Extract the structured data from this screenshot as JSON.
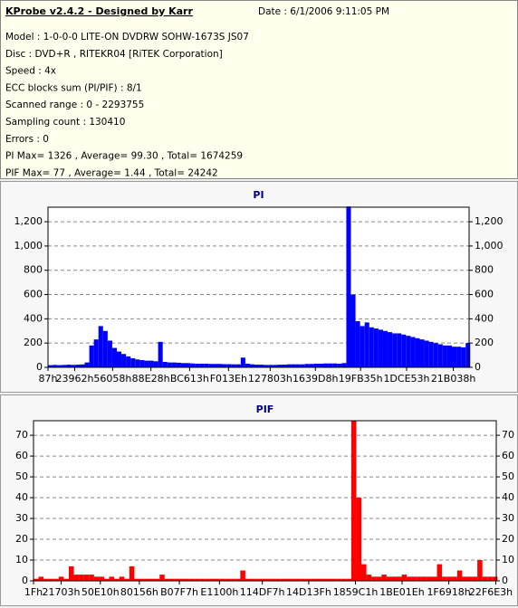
{
  "header": {
    "title": "KProbe v2.4.2 - Designed by Karr",
    "date": "Date : 6/1/2006 9:11:05 PM",
    "lines": [
      "Model : 1-0-0-0 LITE-ON DVDRW SOHW-1673S JS07",
      "Disc : DVD+R , RITEKR04 [RiTEK Corporation]",
      "Speed : 4x",
      "ECC blocks sum (PI/PIF) : 8/1",
      "Scanned range : 0 - 2293755",
      "Sampling count : 130410",
      "Errors : 0",
      "PI Max= 1326 , Average= 99.30 , Total= 1674259",
      "PIF Max= 77 , Average= 1.44 , Total= 24242"
    ]
  },
  "chart_data": [
    {
      "type": "bar",
      "title": "PI",
      "color": "#0000ff",
      "grid": true,
      "xlim": [
        135,
        2293755
      ],
      "ylim": [
        0,
        1320
      ],
      "xticks": [
        {
          "value": 135,
          "label": "87h"
        },
        {
          "value": 145762,
          "label": "23962h"
        },
        {
          "value": 352344,
          "label": "56058h"
        },
        {
          "value": 560680,
          "label": "88E28h"
        },
        {
          "value": 771603,
          "label": "BC613h"
        },
        {
          "value": 983358,
          "label": "F013Eh"
        },
        {
          "value": 1210371,
          "label": "127803h"
        },
        {
          "value": 1456600,
          "label": "1639D8h"
        },
        {
          "value": 1702709,
          "label": "19FB35h"
        },
        {
          "value": 1953363,
          "label": "1DCE53h"
        },
        {
          "value": 2207800,
          "label": "21B038h"
        }
      ],
      "yticks": [
        0,
        200,
        400,
        600,
        800,
        {
          "value": 1000,
          "label": "1,000"
        },
        {
          "value": 1200,
          "label": "1,200"
        }
      ],
      "x": [
        12500,
        37500,
        62500,
        87500,
        112500,
        137500,
        162500,
        187500,
        212500,
        237500,
        262500,
        287500,
        312500,
        337500,
        362500,
        387500,
        412500,
        437500,
        462500,
        487500,
        512500,
        537500,
        562500,
        587500,
        612500,
        637500,
        662500,
        687500,
        712500,
        737500,
        762500,
        787500,
        812500,
        837500,
        862500,
        887500,
        912500,
        937500,
        962500,
        987500,
        1012500,
        1037500,
        1062500,
        1087500,
        1112500,
        1137500,
        1162500,
        1187500,
        1212500,
        1237500,
        1262500,
        1287500,
        1312500,
        1337500,
        1362500,
        1387500,
        1412500,
        1437500,
        1462500,
        1487500,
        1512500,
        1537500,
        1562500,
        1587500,
        1612500,
        1637500,
        1662500,
        1687500,
        1712500,
        1737500,
        1762500,
        1787500,
        1812500,
        1837500,
        1862500,
        1887500,
        1912500,
        1937500,
        1962500,
        1987500,
        2012500,
        2037500,
        2062500,
        2087500,
        2112500,
        2137500,
        2162500,
        2187500,
        2212500,
        2237500,
        2262500,
        2287500
      ],
      "values": [
        18,
        20,
        18,
        20,
        22,
        20,
        22,
        24,
        40,
        180,
        230,
        340,
        300,
        220,
        160,
        130,
        110,
        90,
        75,
        65,
        60,
        55,
        55,
        50,
        210,
        45,
        40,
        40,
        38,
        35,
        35,
        32,
        30,
        30,
        30,
        28,
        28,
        28,
        26,
        26,
        25,
        25,
        80,
        30,
        25,
        22,
        22,
        20,
        20,
        20,
        22,
        22,
        25,
        25,
        25,
        25,
        28,
        28,
        30,
        30,
        32,
        32,
        32,
        30,
        35,
        1326,
        600,
        380,
        340,
        370,
        330,
        320,
        310,
        300,
        290,
        280,
        280,
        270,
        260,
        250,
        240,
        230,
        220,
        210,
        200,
        190,
        180,
        180,
        170,
        170,
        165,
        200
      ]
    },
    {
      "type": "bar",
      "title": "PIF",
      "color": "#ff0000",
      "grid": true,
      "xlim": [
        31,
        2293755
      ],
      "ylim": [
        0,
        77
      ],
      "xticks": [
        {
          "value": 31,
          "label": "1Fh"
        },
        {
          "value": 136963,
          "label": "21703h"
        },
        {
          "value": 331280,
          "label": "50E10h"
        },
        {
          "value": 524630,
          "label": "80156h"
        },
        {
          "value": 722935,
          "label": "B07F7h"
        },
        {
          "value": 921856,
          "label": "E1100h"
        },
        {
          "value": 1134071,
          "label": "114DF7h"
        },
        {
          "value": 1364287,
          "label": "14D13Fh"
        },
        {
          "value": 1595841,
          "label": "1859C1h"
        },
        {
          "value": 1826846,
          "label": "1BE01Eh"
        },
        {
          "value": 2058520,
          "label": "1F6918h"
        },
        {
          "value": 2291427,
          "label": "22F6E3h"
        }
      ],
      "yticks": [
        0,
        10,
        20,
        30,
        40,
        50,
        60,
        70
      ],
      "x": [
        12500,
        37500,
        62500,
        87500,
        112500,
        137500,
        162500,
        187500,
        212500,
        237500,
        262500,
        287500,
        312500,
        337500,
        362500,
        387500,
        412500,
        437500,
        462500,
        487500,
        512500,
        537500,
        562500,
        587500,
        612500,
        637500,
        662500,
        687500,
        712500,
        737500,
        762500,
        787500,
        812500,
        837500,
        862500,
        887500,
        912500,
        937500,
        962500,
        987500,
        1012500,
        1037500,
        1062500,
        1087500,
        1112500,
        1137500,
        1162500,
        1187500,
        1212500,
        1237500,
        1262500,
        1287500,
        1312500,
        1337500,
        1362500,
        1387500,
        1412500,
        1437500,
        1462500,
        1487500,
        1512500,
        1537500,
        1562500,
        1587500,
        1612500,
        1637500,
        1662500,
        1687500,
        1712500,
        1737500,
        1762500,
        1787500,
        1812500,
        1837500,
        1862500,
        1887500,
        1912500,
        1937500,
        1962500,
        1987500,
        2012500,
        2037500,
        2062500,
        2087500,
        2112500,
        2137500,
        2162500,
        2187500,
        2212500,
        2237500,
        2262500,
        2287500
      ],
      "values": [
        1,
        2,
        1,
        1,
        1,
        2,
        1,
        7,
        3,
        3,
        3,
        3,
        2,
        2,
        1,
        2,
        1,
        2,
        1,
        7,
        1,
        1,
        1,
        1,
        1,
        3,
        1,
        1,
        1,
        1,
        1,
        1,
        1,
        1,
        1,
        1,
        1,
        1,
        1,
        1,
        1,
        5,
        1,
        1,
        1,
        1,
        1,
        1,
        1,
        1,
        1,
        1,
        1,
        1,
        1,
        1,
        1,
        1,
        1,
        1,
        1,
        1,
        1,
        77,
        40,
        8,
        3,
        2,
        2,
        3,
        2,
        2,
        2,
        3,
        2,
        2,
        2,
        2,
        2,
        2,
        8,
        2,
        2,
        2,
        5,
        2,
        2,
        2,
        10,
        2,
        2,
        2
      ]
    }
  ]
}
